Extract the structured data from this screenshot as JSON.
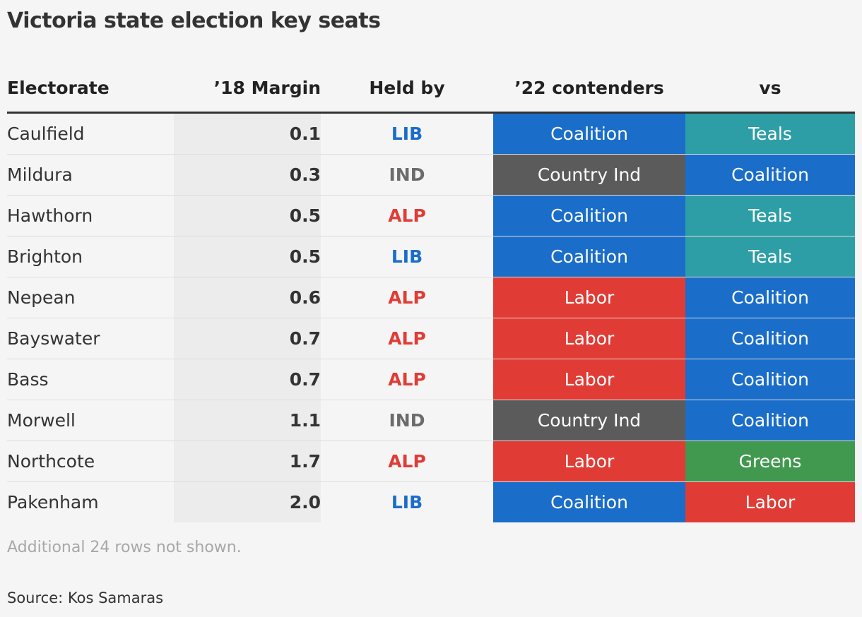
{
  "title": "Victoria state election key seats",
  "colors": {
    "LIB": "#1a6dc9",
    "ALP": "#e03c35",
    "IND": "#6b6b6b",
    "Coalition": "#1a6dc9",
    "Labor": "#e03c35",
    "Country Ind": "#5b5b5b",
    "Teals": "#2e9ea6",
    "Greens": "#41984f"
  },
  "chart_data": {
    "type": "table",
    "columns": [
      "Electorate",
      "’18 Margin",
      "Held by",
      "’22 contenders",
      "vs"
    ],
    "rows": [
      {
        "electorate": "Caulfield",
        "margin": "0.1",
        "held_by": "LIB",
        "contender": "Coalition",
        "vs": "Teals"
      },
      {
        "electorate": "Mildura",
        "margin": "0.3",
        "held_by": "IND",
        "contender": "Country Ind",
        "vs": "Coalition"
      },
      {
        "electorate": "Hawthorn",
        "margin": "0.5",
        "held_by": "ALP",
        "contender": "Coalition",
        "vs": "Teals"
      },
      {
        "electorate": "Brighton",
        "margin": "0.5",
        "held_by": "LIB",
        "contender": "Coalition",
        "vs": "Teals"
      },
      {
        "electorate": "Nepean",
        "margin": "0.6",
        "held_by": "ALP",
        "contender": "Labor",
        "vs": "Coalition"
      },
      {
        "electorate": "Bayswater",
        "margin": "0.7",
        "held_by": "ALP",
        "contender": "Labor",
        "vs": "Coalition"
      },
      {
        "electorate": "Bass",
        "margin": "0.7",
        "held_by": "ALP",
        "contender": "Labor",
        "vs": "Coalition"
      },
      {
        "electorate": "Morwell",
        "margin": "1.1",
        "held_by": "IND",
        "contender": "Country Ind",
        "vs": "Coalition"
      },
      {
        "electorate": "Northcote",
        "margin": "1.7",
        "held_by": "ALP",
        "contender": "Labor",
        "vs": "Greens"
      },
      {
        "electorate": "Pakenham",
        "margin": "2.0",
        "held_by": "LIB",
        "contender": "Coalition",
        "vs": "Labor"
      }
    ]
  },
  "footnote": "Additional 24 rows not shown.",
  "source": "Source: Kos Samaras"
}
